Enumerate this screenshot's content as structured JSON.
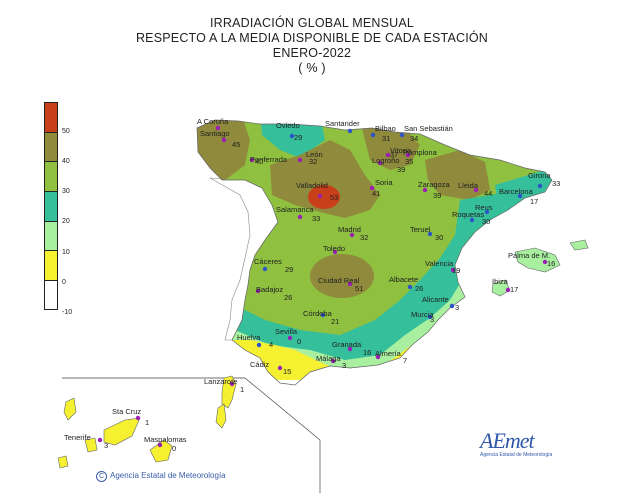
{
  "title": {
    "line1": "IRRADIACIÓN  GLOBAL MENSUAL",
    "line2": "RESPECTO  A LA MEDIA DISPONIBLE DE CADA ESTACIÓN",
    "line3": "ENERO-2022",
    "line4": "( % )"
  },
  "legend": {
    "labels": [
      "50",
      "40",
      "30",
      "20",
      "10",
      "0",
      "-10"
    ],
    "colors": [
      "#c8401a",
      "#8f8a3c",
      "#8fc040",
      "#35bf9a",
      "#a8f0a0",
      "#f5f030",
      "#ffffff"
    ]
  },
  "stations": [
    {
      "name": "A Coruña",
      "value": "",
      "color": "purple"
    },
    {
      "name": "Santiago",
      "value": "45",
      "color": "purple"
    },
    {
      "name": "Oviedo",
      "value": "29",
      "color": "blue"
    },
    {
      "name": "Santander",
      "value": "",
      "color": "blue"
    },
    {
      "name": "Bilbao",
      "value": "31",
      "color": "blue"
    },
    {
      "name": "San Sebastián",
      "value": "34",
      "color": "blue"
    },
    {
      "name": "Ponferrada",
      "value": "40",
      "color": "purple"
    },
    {
      "name": "León",
      "value": "32",
      "color": "purple"
    },
    {
      "name": "Vitoria",
      "value": "37",
      "color": "purple"
    },
    {
      "name": "Pamplona",
      "value": "35",
      "color": "purple"
    },
    {
      "name": "Logroño",
      "value": "39",
      "color": "purple"
    },
    {
      "name": "Valladolid",
      "value": "53",
      "color": "purple"
    },
    {
      "name": "Soria",
      "value": "41",
      "color": "purple"
    },
    {
      "name": "Zaragoza",
      "value": "39",
      "color": "purple"
    },
    {
      "name": "Lleida",
      "value": "44",
      "color": "purple"
    },
    {
      "name": "Girona",
      "value": "33",
      "color": "blue"
    },
    {
      "name": "Barcelona",
      "value": "17",
      "color": "blue"
    },
    {
      "name": "Salamanca",
      "value": "33",
      "color": "purple"
    },
    {
      "name": "Madrid",
      "value": "32",
      "color": "purple"
    },
    {
      "name": "Reus",
      "value": "",
      "color": "blue"
    },
    {
      "name": "Roquetas",
      "value": "30",
      "color": "blue"
    },
    {
      "name": "Teruel",
      "value": "30",
      "color": "blue"
    },
    {
      "name": "Toledo",
      "value": "",
      "color": "purple"
    },
    {
      "name": "Palma de M.",
      "value": "16",
      "color": "purple"
    },
    {
      "name": "Cáceres",
      "value": "29",
      "color": "blue"
    },
    {
      "name": "Valencia",
      "value": "19",
      "color": "purple"
    },
    {
      "name": "Ciudad Real",
      "value": "51",
      "color": "purple"
    },
    {
      "name": "Albacete",
      "value": "26",
      "color": "blue"
    },
    {
      "name": "Ibiza",
      "value": "17",
      "color": "purple"
    },
    {
      "name": "Badajoz",
      "value": "26",
      "color": "purple"
    },
    {
      "name": "Alicante",
      "value": "3",
      "color": "blue"
    },
    {
      "name": "Córdoba",
      "value": "21",
      "color": "blue"
    },
    {
      "name": "Murcia",
      "value": "3",
      "color": "blue"
    },
    {
      "name": "Huelva",
      "value": "4",
      "color": "blue"
    },
    {
      "name": "Sevilla",
      "value": "0",
      "color": "purple"
    },
    {
      "name": "Granada",
      "value": "16",
      "color": "purple"
    },
    {
      "name": "Almería",
      "value": "7",
      "color": "purple"
    },
    {
      "name": "Málaga",
      "value": "3",
      "color": "purple"
    },
    {
      "name": "Cádiz",
      "value": "15",
      "color": "purple"
    },
    {
      "name": "Lanzarote",
      "value": "1",
      "color": "purple"
    },
    {
      "name": "Sta Cruz",
      "value": "1",
      "color": "purple"
    },
    {
      "name": "Tenerife",
      "value": "3",
      "color": "purple"
    },
    {
      "name": "Maspalomas",
      "value": "0",
      "color": "purple"
    }
  ],
  "credit": "Agencia Estatal de Meteorología",
  "credit_symbol": "C",
  "logo": {
    "main": "AEmet",
    "sub": "Agencia Estatal de Meteorología"
  }
}
